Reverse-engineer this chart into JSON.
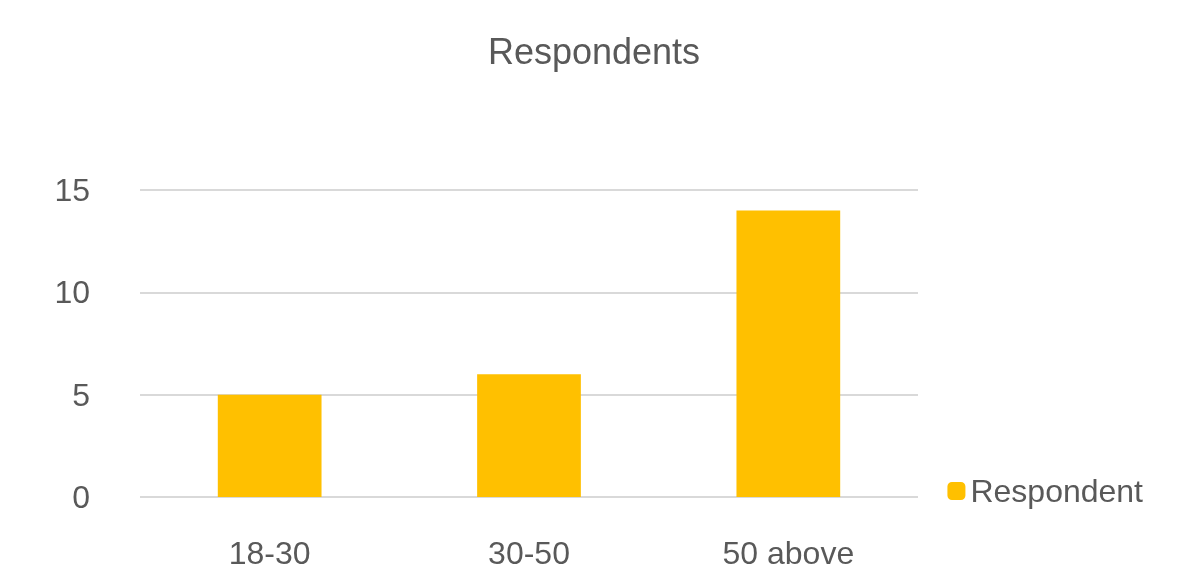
{
  "chart_data": {
    "type": "bar",
    "title": "Respondents",
    "categories": [
      "18-30",
      "30-50",
      "50 above"
    ],
    "series": [
      {
        "name": "Respondent",
        "color": "#ffc000",
        "values": [
          5,
          6,
          14
        ]
      }
    ],
    "ylim": [
      0,
      15
    ],
    "yticks": [
      0,
      5,
      10,
      15
    ],
    "grid": "y",
    "legend": "right"
  }
}
